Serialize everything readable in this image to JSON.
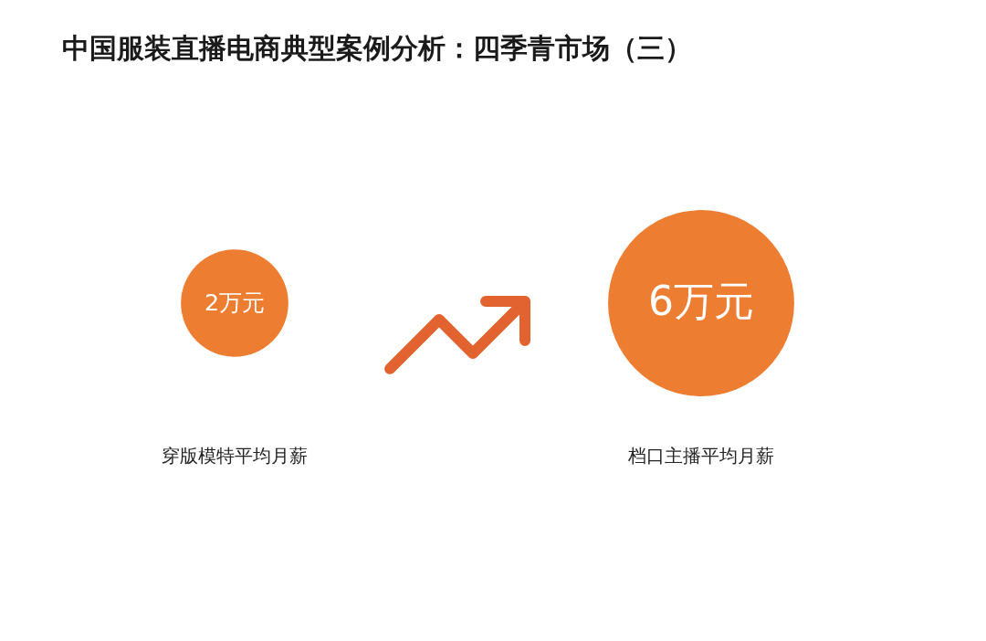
{
  "chart_data": {
    "type": "other",
    "title": "中国服装直播电商典型案例分析：四季青市场（三）",
    "categories": [
      "穿版模特平均月薪",
      "档口主播平均月薪"
    ],
    "values": [
      2,
      6
    ],
    "value_labels": [
      "2万元",
      "6万元"
    ],
    "color": "#ed7d31"
  }
}
